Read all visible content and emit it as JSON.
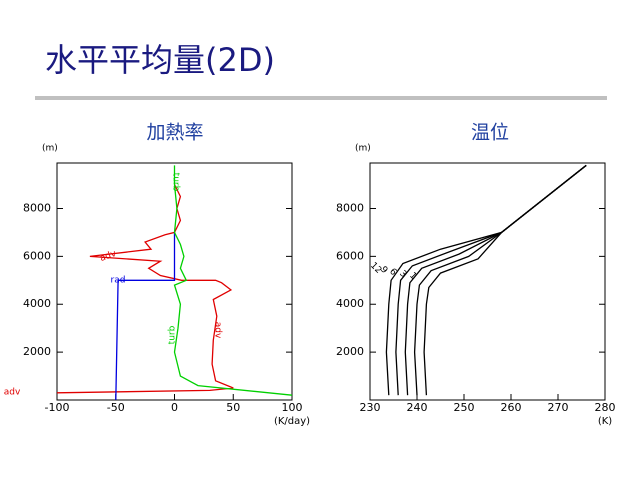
{
  "title": "水平平均量(2D)",
  "chart_data": [
    {
      "type": "line",
      "title": "加熱率",
      "x_unit": "(K/day)",
      "y_unit": "(m)",
      "xlim": [
        -100,
        100
      ],
      "ylim": [
        0,
        9900
      ],
      "xticks": [
        -100,
        -50,
        0,
        50,
        100
      ],
      "yticks": [
        2000,
        4000,
        6000,
        8000
      ],
      "series": [
        {
          "name": "adv",
          "color": "#e00000",
          "x": [
            -100,
            30,
            50,
            35,
            32,
            33,
            36,
            33,
            48,
            40,
            35,
            6,
            -12,
            -22,
            -12,
            -72,
            -20,
            -25,
            -8,
            0,
            5,
            2,
            5,
            0
          ],
          "y": [
            300,
            400,
            500,
            800,
            1500,
            2500,
            3500,
            4200,
            4600,
            4900,
            5000,
            5000,
            5200,
            5500,
            5800,
            6000,
            6300,
            6600,
            6900,
            7000,
            7500,
            8000,
            8500,
            9000
          ]
        },
        {
          "name": "rad",
          "color": "#0000e0",
          "x": [
            -50,
            -48,
            0,
            0
          ],
          "y": [
            0,
            5000,
            5000,
            7000
          ]
        },
        {
          "name": "turb",
          "color": "#00d000",
          "x": [
            100,
            20,
            5,
            0,
            3,
            5,
            0,
            10,
            5,
            8,
            5,
            0,
            2,
            0,
            0
          ],
          "y": [
            200,
            600,
            1000,
            2000,
            3000,
            4000,
            4800,
            5000,
            5500,
            6000,
            6500,
            7000,
            8000,
            9000,
            9800
          ]
        }
      ]
    },
    {
      "type": "line",
      "title": "温位",
      "x_unit": "(K)",
      "y_unit": "(m)",
      "xlim": [
        230,
        280
      ],
      "ylim": [
        0,
        9900
      ],
      "xticks": [
        230,
        240,
        250,
        260,
        270,
        280
      ],
      "yticks": [
        2000,
        4000,
        6000,
        8000
      ],
      "series": [
        {
          "name": "12",
          "color": "#000000",
          "x": [
            234,
            233.5,
            234,
            234.5,
            237,
            245,
            258,
            276
          ],
          "y": [
            200,
            2000,
            4000,
            5000,
            5700,
            6300,
            7000,
            9800
          ]
        },
        {
          "name": "9",
          "color": "#000000",
          "x": [
            236,
            235.5,
            236,
            236.5,
            239,
            247,
            258,
            276
          ],
          "y": [
            200,
            2000,
            4000,
            5000,
            5600,
            6200,
            7000,
            9800
          ]
        },
        {
          "name": "6",
          "color": "#000000",
          "x": [
            238,
            237.5,
            238,
            238.5,
            241,
            249,
            258,
            276
          ],
          "y": [
            200,
            2000,
            4000,
            4900,
            5500,
            6100,
            7000,
            9800
          ]
        },
        {
          "name": "3",
          "color": "#000000",
          "x": [
            240,
            239.5,
            240,
            240.5,
            243,
            251,
            258,
            276
          ],
          "y": [
            200,
            2000,
            4000,
            4800,
            5400,
            6000,
            7000,
            9800
          ]
        },
        {
          "name": "1",
          "color": "#000000",
          "x": [
            242,
            241.5,
            242,
            242.5,
            245,
            253,
            258,
            276
          ],
          "y": [
            200,
            2000,
            4000,
            4700,
            5300,
            5900,
            7000,
            9800
          ]
        }
      ]
    }
  ]
}
